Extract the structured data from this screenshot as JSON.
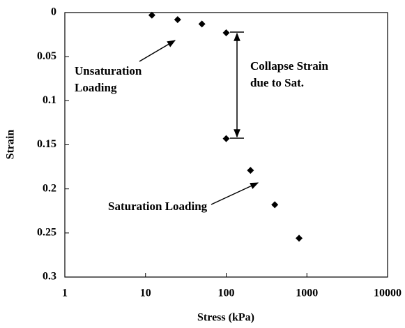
{
  "chart_data": {
    "type": "scatter",
    "x_label": "Stress (kPa)",
    "y_label": "Strain",
    "x": [
      12,
      25,
      50,
      100,
      100,
      200,
      400,
      800
    ],
    "values": [
      0.003,
      0.008,
      0.013,
      0.023,
      0.143,
      0.179,
      0.218,
      0.256
    ],
    "color": "#000000",
    "marker": "diamond",
    "xlim": [
      1,
      10000
    ],
    "xticks": [
      1,
      10,
      100,
      1000,
      10000
    ],
    "x_log": true,
    "ylim": [
      0,
      0.3
    ],
    "yticks": [
      0,
      0.05,
      0.1,
      0.15,
      0.2,
      0.25,
      0.3
    ],
    "y_inverted": true,
    "grid": false,
    "annotations": [
      {
        "lines": [
          "Unsaturation",
          "Loading"
        ]
      },
      {
        "lines": [
          "Collapse Strain",
          "due to Sat."
        ]
      },
      {
        "lines": [
          "Saturation Loading"
        ]
      }
    ]
  }
}
